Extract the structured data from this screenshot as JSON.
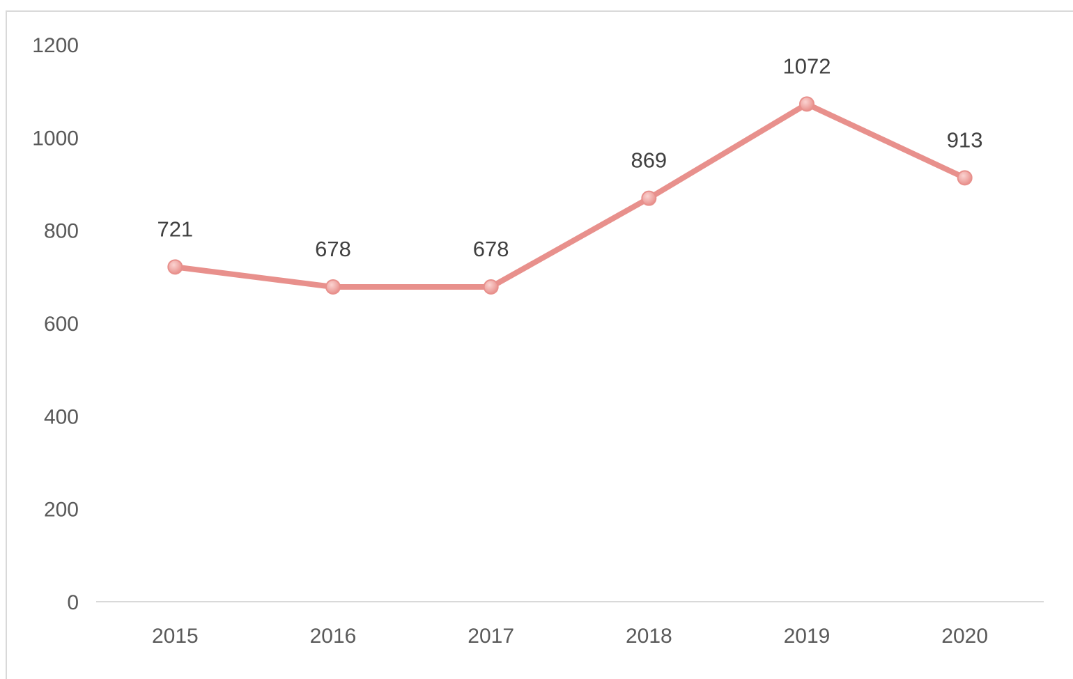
{
  "chart_data": {
    "type": "line",
    "categories": [
      "2015",
      "2016",
      "2017",
      "2018",
      "2019",
      "2020"
    ],
    "series": [
      {
        "values": [
          721,
          678,
          678,
          869,
          1072,
          913
        ],
        "color": "#e8908c"
      }
    ],
    "yticks": [
      "0",
      "200",
      "400",
      "600",
      "800",
      "1000",
      "1200"
    ],
    "ylim": [
      0,
      1200
    ],
    "data_labels": [
      "721",
      "678",
      "678",
      "869",
      "1072",
      "913"
    ],
    "grid": false,
    "legend": "none",
    "axis_color": "#d9d9d9",
    "marker_color": "#f2aaa6"
  }
}
